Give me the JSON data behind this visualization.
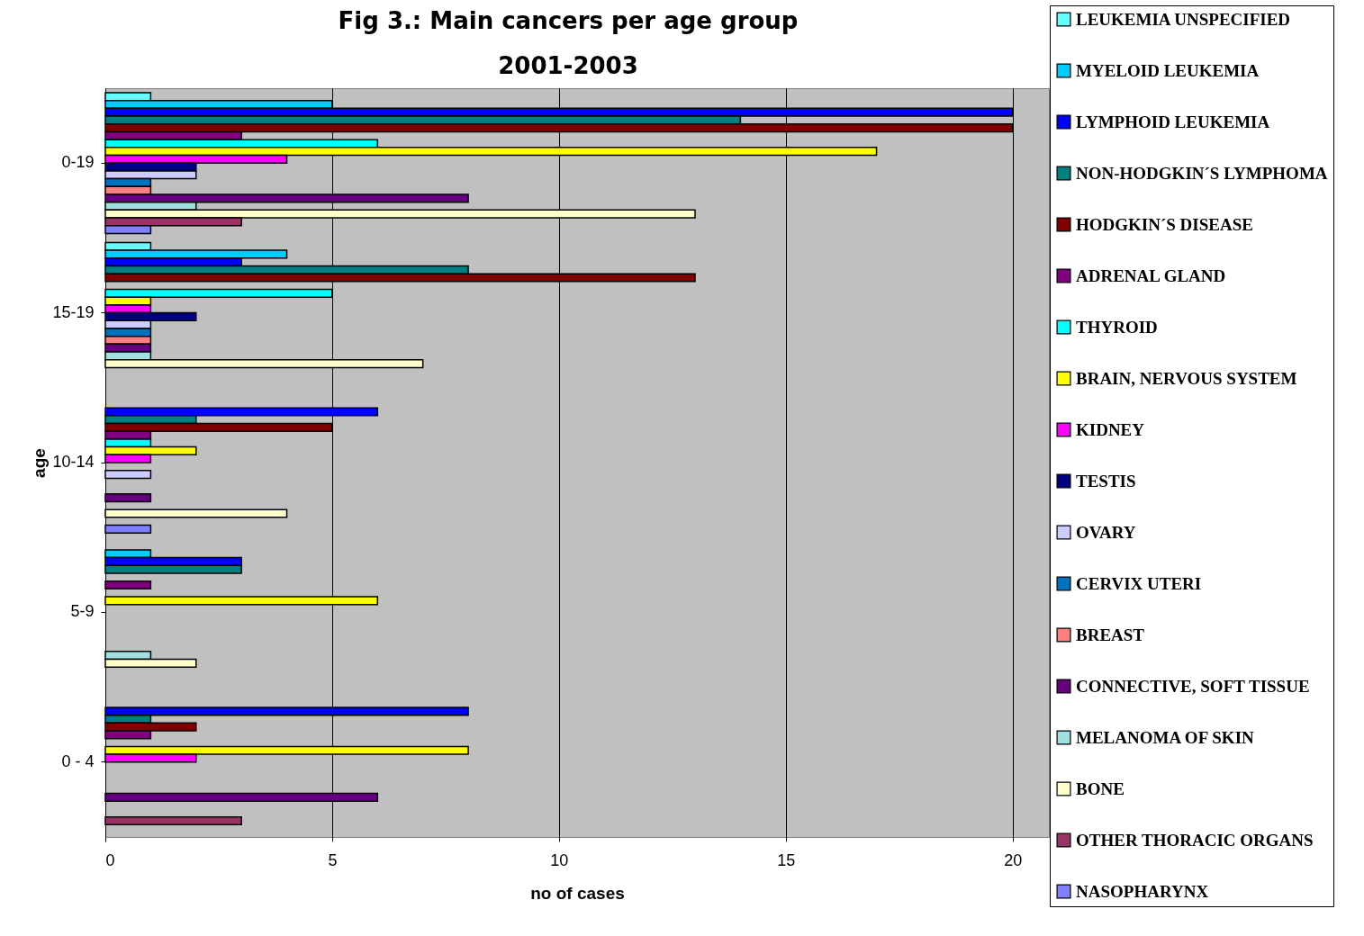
{
  "chart_data": {
    "type": "bar",
    "orientation": "horizontal",
    "title": "Fig 3.: Main cancers per age  group",
    "subtitle": "2001-2003",
    "xlabel": "no of cases",
    "ylabel": "age",
    "categories": [
      "0-19",
      "15-19",
      "10-14",
      "5-9",
      "0 - 4"
    ],
    "xlim": [
      0,
      20.8
    ],
    "xticks": [
      0,
      5,
      10,
      15,
      20
    ],
    "grid": "x",
    "legend": "right",
    "series": [
      {
        "name": "LEUKEMIA UNSPECIFIED",
        "color": "#66ffff",
        "values": [
          1,
          1,
          null,
          null,
          null
        ]
      },
      {
        "name": "MYELOID LEUKEMIA",
        "color": "#00ccff",
        "values": [
          5,
          4,
          null,
          1,
          null
        ]
      },
      {
        "name": "LYMPHOID LEUKEMIA",
        "color": "#0000ff",
        "values": [
          20,
          3,
          6,
          3,
          8
        ]
      },
      {
        "name": "NON-HODGKIN´S LYMPHOMA",
        "color": "#008080",
        "values": [
          14,
          8,
          2,
          3,
          1
        ]
      },
      {
        "name": "HODGKIN´S DISEASE",
        "color": "#800000",
        "values": [
          20,
          13,
          5,
          null,
          2
        ]
      },
      {
        "name": "ADRENAL GLAND",
        "color": "#800080",
        "values": [
          3,
          null,
          1,
          1,
          1
        ]
      },
      {
        "name": "THYROID",
        "color": "#00ffff",
        "values": [
          6,
          5,
          1,
          null,
          null
        ]
      },
      {
        "name": "BRAIN, NERVOUS SYSTEM",
        "color": "#ffff00",
        "values": [
          17,
          1,
          2,
          6,
          8
        ]
      },
      {
        "name": "KIDNEY",
        "color": "#ff00ff",
        "values": [
          4,
          1,
          1,
          null,
          2
        ]
      },
      {
        "name": "TESTIS",
        "color": "#000080",
        "values": [
          2,
          2,
          null,
          null,
          null
        ]
      },
      {
        "name": "OVARY",
        "color": "#ccccff",
        "values": [
          2,
          1,
          1,
          null,
          null
        ]
      },
      {
        "name": "CERVIX UTERI",
        "color": "#0070c0",
        "values": [
          1,
          1,
          null,
          null,
          null
        ]
      },
      {
        "name": "BREAST",
        "color": "#ff8080",
        "values": [
          1,
          1,
          null,
          null,
          null
        ]
      },
      {
        "name": "CONNECTIVE, SOFT TISSUE",
        "color": "#660080",
        "values": [
          8,
          1,
          1,
          null,
          6
        ]
      },
      {
        "name": "MELANOMA OF SKIN",
        "color": "#a0e0e0",
        "values": [
          2,
          1,
          null,
          1,
          null
        ]
      },
      {
        "name": "BONE",
        "color": "#ffffcc",
        "values": [
          13,
          7,
          4,
          2,
          null
        ]
      },
      {
        "name": "OTHER THORACIC ORGANS",
        "color": "#993366",
        "values": [
          3,
          null,
          null,
          null,
          3
        ]
      },
      {
        "name": "NASOPHARYNX",
        "color": "#8080ff",
        "values": [
          1,
          null,
          1,
          null,
          null
        ]
      }
    ]
  }
}
